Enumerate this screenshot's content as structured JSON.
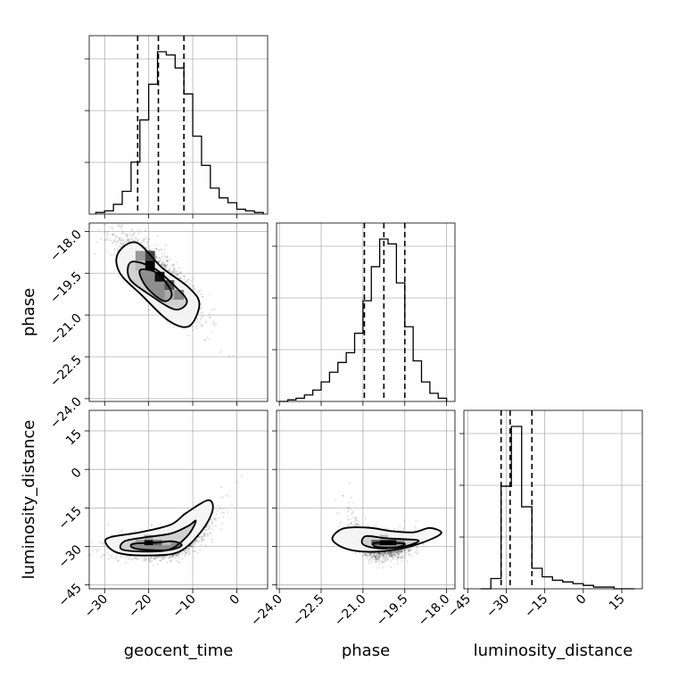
{
  "chart_data": {
    "type": "corner",
    "parameters": [
      "geocent_time",
      "phase",
      "luminosity_distance"
    ],
    "axis_labels": {
      "x": [
        "geocent_time",
        "phase",
        "luminosity_distance"
      ],
      "y": [
        "",
        "phase",
        "luminosity_distance"
      ]
    },
    "ranges": {
      "geocent_time": [
        -33.5,
        7.0
      ],
      "phase": [
        -24.1,
        -17.7
      ],
      "luminosity_distance": [
        -46.5,
        23.0
      ]
    },
    "ticks": {
      "geocent_time": [
        -30,
        -20,
        -10,
        0
      ],
      "phase": [
        -24.0,
        -22.5,
        -21.0,
        -19.5,
        -18.0
      ],
      "luminosity_distance": [
        -45,
        -30,
        -15,
        0,
        15
      ]
    },
    "tick_labels": {
      "geocent_time": [
        "−30",
        "−20",
        "−10",
        "0"
      ],
      "phase": [
        "−24.0",
        "−22.5",
        "−21.0",
        "−19.5",
        "−18.0"
      ],
      "luminosity_distance": [
        "−45",
        "−30",
        "−15",
        "0",
        "15"
      ]
    },
    "grid": true,
    "histograms": {
      "geocent_time": {
        "bin_edges": [
          -32,
          -30,
          -28,
          -26,
          -24,
          -22,
          -20,
          -18,
          -16,
          -14,
          -12,
          -10,
          -8,
          -6,
          -4,
          -2,
          0,
          2,
          4,
          6
        ],
        "counts": [
          0.01,
          0.02,
          0.06,
          0.14,
          0.32,
          0.58,
          0.8,
          1.0,
          0.98,
          0.9,
          0.74,
          0.48,
          0.3,
          0.16,
          0.1,
          0.07,
          0.03,
          0.02,
          0.01
        ],
        "quantiles": [
          -22.5,
          -17.8,
          -12.0
        ]
      },
      "phase": {
        "bin_edges": [
          -24.0,
          -23.7,
          -23.4,
          -23.1,
          -22.8,
          -22.5,
          -22.2,
          -21.9,
          -21.6,
          -21.3,
          -21.0,
          -20.7,
          -20.4,
          -20.1,
          -19.8,
          -19.5,
          -19.2,
          -18.9,
          -18.6,
          -18.3,
          -18.0
        ],
        "counts": [
          0.0,
          0.01,
          0.02,
          0.04,
          0.07,
          0.12,
          0.18,
          0.24,
          0.3,
          0.42,
          0.62,
          0.83,
          1.0,
          0.97,
          0.73,
          0.46,
          0.25,
          0.12,
          0.05,
          0.02
        ],
        "quantiles": [
          -20.95,
          -20.25,
          -19.5
        ]
      },
      "luminosity_distance": {
        "bin_edges": [
          -40,
          -36,
          -32,
          -28,
          -24,
          -20,
          -16,
          -12,
          -8,
          -4,
          0,
          4,
          8,
          12,
          16,
          20
        ],
        "counts": [
          0.0,
          0.06,
          0.6,
          0.95,
          0.48,
          0.12,
          0.07,
          0.05,
          0.04,
          0.03,
          0.02,
          0.01,
          0.01,
          0.0,
          0.0
        ],
        "quantiles": [
          -32.0,
          -28.5,
          -20.0
        ]
      }
    },
    "density_levels": [
      0.39,
      0.86,
      0.99
    ]
  }
}
